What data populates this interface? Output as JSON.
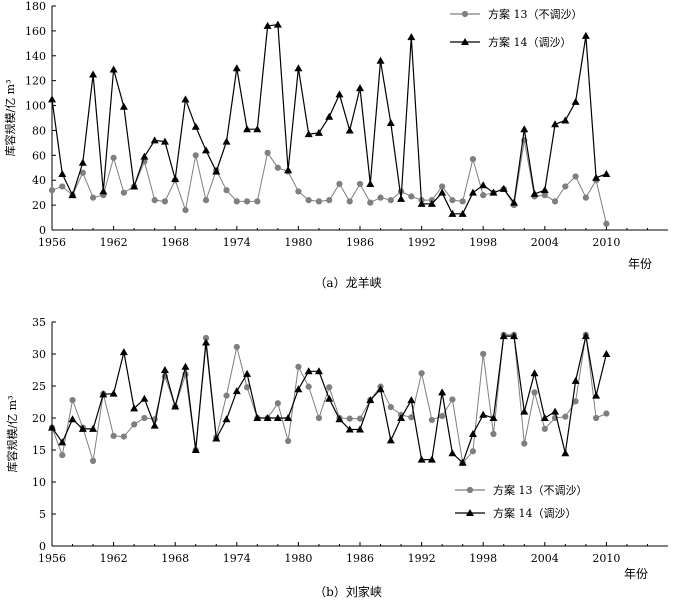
{
  "figure_captions": [
    "（a）龙羊峡",
    "（b）刘家峡"
  ],
  "chart_data": [
    {
      "type": "line",
      "title": "（a）龙羊峡",
      "xlabel": "年份",
      "ylabel": "库容规模/亿 m³",
      "xlim": [
        1956,
        2016
      ],
      "ylim": [
        0,
        180
      ],
      "xticks": [
        1956,
        1962,
        1968,
        1974,
        1980,
        1986,
        1992,
        1998,
        2004,
        2010
      ],
      "yticks": [
        0,
        20,
        40,
        60,
        80,
        100,
        120,
        140,
        160,
        180
      ],
      "legend_position": "top-right",
      "x": [
        1956,
        1957,
        1958,
        1959,
        1960,
        1961,
        1962,
        1963,
        1964,
        1965,
        1966,
        1967,
        1968,
        1969,
        1970,
        1971,
        1972,
        1973,
        1974,
        1975,
        1976,
        1977,
        1978,
        1979,
        1980,
        1981,
        1982,
        1983,
        1984,
        1985,
        1986,
        1987,
        1988,
        1989,
        1990,
        1991,
        1992,
        1993,
        1994,
        1995,
        1996,
        1997,
        1998,
        1999,
        2000,
        2001,
        2002,
        2003,
        2004,
        2005,
        2006,
        2007,
        2008,
        2009,
        2010
      ],
      "series": [
        {
          "name": "方案 13（不调沙）",
          "marker": "circle",
          "color": "#7f7f7f",
          "values": [
            32,
            35,
            28,
            46,
            26,
            28,
            58,
            30,
            35,
            55,
            24,
            23,
            40,
            16,
            60,
            24,
            48,
            32,
            23,
            23,
            23,
            62,
            50,
            47,
            31,
            24,
            23,
            24,
            37,
            23,
            37,
            22,
            26,
            24,
            31,
            27,
            24,
            24,
            35,
            24,
            23,
            57,
            28,
            30,
            33,
            20,
            72,
            27,
            28,
            23,
            35,
            43,
            26,
            40,
            5
          ]
        },
        {
          "name": "方案 14（调沙）",
          "marker": "triangle",
          "color": "#000000",
          "values": [
            105,
            45,
            28,
            54,
            125,
            31,
            129,
            99,
            35,
            59,
            72,
            71,
            41,
            105,
            83,
            64,
            47,
            71,
            130,
            81,
            81,
            164,
            165,
            48,
            130,
            77,
            78,
            91,
            109,
            80,
            114,
            37,
            136,
            86,
            25,
            155,
            21,
            21,
            30,
            13,
            13,
            30,
            36,
            30,
            33,
            22,
            81,
            29,
            32,
            85,
            88,
            103,
            156,
            42,
            45
          ]
        }
      ]
    },
    {
      "type": "line",
      "title": "（b）刘家峡",
      "xlabel": "年份",
      "ylabel": "库容规模/亿 m³",
      "xlim": [
        1956,
        2016
      ],
      "ylim": [
        0,
        35
      ],
      "xticks": [
        1956,
        1962,
        1968,
        1974,
        1980,
        1986,
        1992,
        1998,
        2004,
        2010
      ],
      "yticks": [
        0,
        5,
        10,
        15,
        20,
        25,
        30,
        35
      ],
      "legend_position": "bottom-center",
      "x": [
        1956,
        1957,
        1958,
        1959,
        1960,
        1961,
        1962,
        1963,
        1964,
        1965,
        1966,
        1967,
        1968,
        1969,
        1970,
        1971,
        1972,
        1973,
        1974,
        1975,
        1976,
        1977,
        1978,
        1979,
        1980,
        1981,
        1982,
        1983,
        1984,
        1985,
        1986,
        1987,
        1988,
        1989,
        1990,
        1991,
        1992,
        1993,
        1994,
        1995,
        1996,
        1997,
        1998,
        1999,
        2000,
        2001,
        2002,
        2003,
        2004,
        2005,
        2006,
        2007,
        2008,
        2009,
        2010
      ],
      "series": [
        {
          "name": "方案 13（不调沙）",
          "marker": "circle",
          "color": "#7f7f7f",
          "values": [
            18.5,
            14.2,
            22.8,
            18.5,
            13.3,
            23.8,
            17.2,
            17.1,
            19.0,
            20.0,
            19.8,
            26.5,
            21.8,
            26.8,
            15.0,
            32.5,
            17.0,
            23.5,
            31.1,
            24.8,
            20.0,
            20.0,
            22.3,
            16.4,
            28.0,
            24.9,
            20.0,
            24.8,
            20.0,
            19.9,
            19.9,
            22.8,
            24.9,
            21.7,
            20.5,
            20.1,
            27.0,
            19.7,
            20.3,
            22.9,
            13.0,
            14.8,
            30.0,
            17.5,
            33.0,
            33.0,
            16.0,
            24.0,
            18.3,
            20.0,
            20.2,
            22.6,
            33.0,
            20.0,
            20.7
          ]
        },
        {
          "name": "方案 14（调沙）",
          "marker": "triangle",
          "color": "#000000",
          "values": [
            18.5,
            16.2,
            19.8,
            18.3,
            18.3,
            23.7,
            23.8,
            30.3,
            21.5,
            23.0,
            18.8,
            27.5,
            21.8,
            28.0,
            15.0,
            31.8,
            16.8,
            19.8,
            24.2,
            26.9,
            20.0,
            20.0,
            20.0,
            20.0,
            24.5,
            27.3,
            27.3,
            23.0,
            19.8,
            18.2,
            18.2,
            22.8,
            24.5,
            16.5,
            20.0,
            22.8,
            13.5,
            13.5,
            24.0,
            14.5,
            13.0,
            17.5,
            20.5,
            20.0,
            32.8,
            32.8,
            21.0,
            27.0,
            20.0,
            21.0,
            14.5,
            25.8,
            32.8,
            23.5,
            30.0
          ]
        }
      ]
    }
  ]
}
